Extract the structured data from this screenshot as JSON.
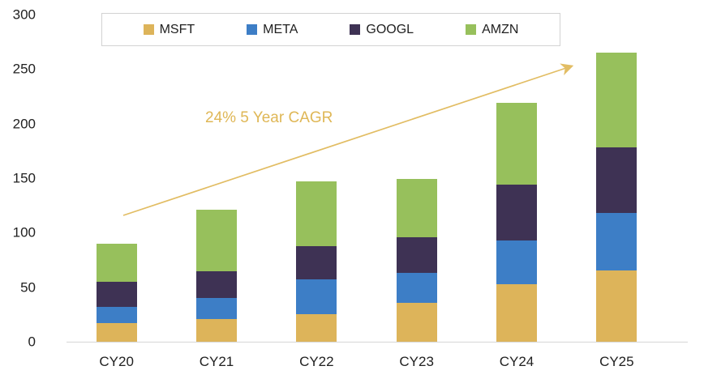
{
  "chart_data": {
    "type": "bar",
    "stacked": true,
    "title": "",
    "xlabel": "",
    "ylabel": "",
    "categories": [
      "CY20",
      "CY21",
      "CY22",
      "CY23",
      "CY24",
      "CY25"
    ],
    "series": [
      {
        "name": "MSFT",
        "color": "#ddb45a",
        "values": [
          17,
          21,
          25,
          36,
          53,
          65
        ]
      },
      {
        "name": "META",
        "color": "#3d7ec6",
        "values": [
          15,
          19,
          32,
          27,
          40,
          53
        ]
      },
      {
        "name": "GOOGL",
        "color": "#3e3254",
        "values": [
          23,
          25,
          31,
          33,
          51,
          60
        ]
      },
      {
        "name": "AMZN",
        "color": "#97c05c",
        "values": [
          35,
          56,
          59,
          53,
          75,
          87
        ]
      }
    ],
    "totals": [
      90,
      121,
      147,
      149,
      219,
      265
    ],
    "ylim": [
      0,
      300
    ],
    "yticks": [
      0,
      50,
      100,
      150,
      200,
      250,
      300
    ],
    "grid": false,
    "legend_position": "top",
    "annotation": {
      "label": "24% 5 Year CAGR",
      "text_color": "#dfb756",
      "arrow_color": "#e2bd64"
    },
    "axis_line_color": "#d6d6d6"
  }
}
